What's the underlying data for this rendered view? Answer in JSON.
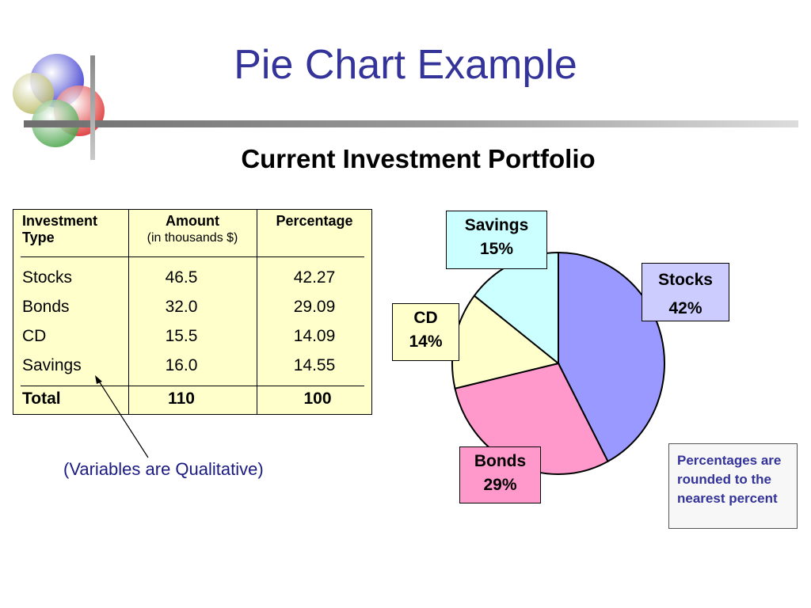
{
  "slide": {
    "title": "Pie Chart Example",
    "subtitle": "Current Investment Portfolio",
    "qualitative_note": "(Variables are Qualitative)",
    "rounding_note": "Percentages are rounded to the nearest percent"
  },
  "table": {
    "headers": {
      "type_line1": "Investment",
      "type_line2": "Type",
      "amount": "Amount",
      "amount_sub": "(in thousands $)",
      "percentage": "Percentage"
    },
    "rows": [
      {
        "type": "Stocks",
        "amount": "46.5",
        "percentage": "42.27"
      },
      {
        "type": "Bonds",
        "amount": "32.0",
        "percentage": "29.09"
      },
      {
        "type": "CD",
        "amount": "15.5",
        "percentage": "14.09"
      },
      {
        "type": "Savings",
        "amount": "16.0",
        "percentage": "14.55"
      }
    ],
    "total": {
      "label": "Total",
      "amount": "110",
      "percentage": "100"
    }
  },
  "chart_data": {
    "type": "pie",
    "title": "",
    "categories": [
      "Stocks",
      "Bonds",
      "CD",
      "Savings"
    ],
    "values": [
      42.27,
      29.09,
      14.09,
      14.55
    ],
    "labels": [
      "42%",
      "29%",
      "14%",
      "15%"
    ],
    "colors": [
      "#9999ff",
      "#ff99cc",
      "#ffffcc",
      "#ccffff"
    ],
    "label_colors": [
      "#ccccff",
      "#ff99cc",
      "#ffffcc",
      "#ccffff"
    ]
  }
}
